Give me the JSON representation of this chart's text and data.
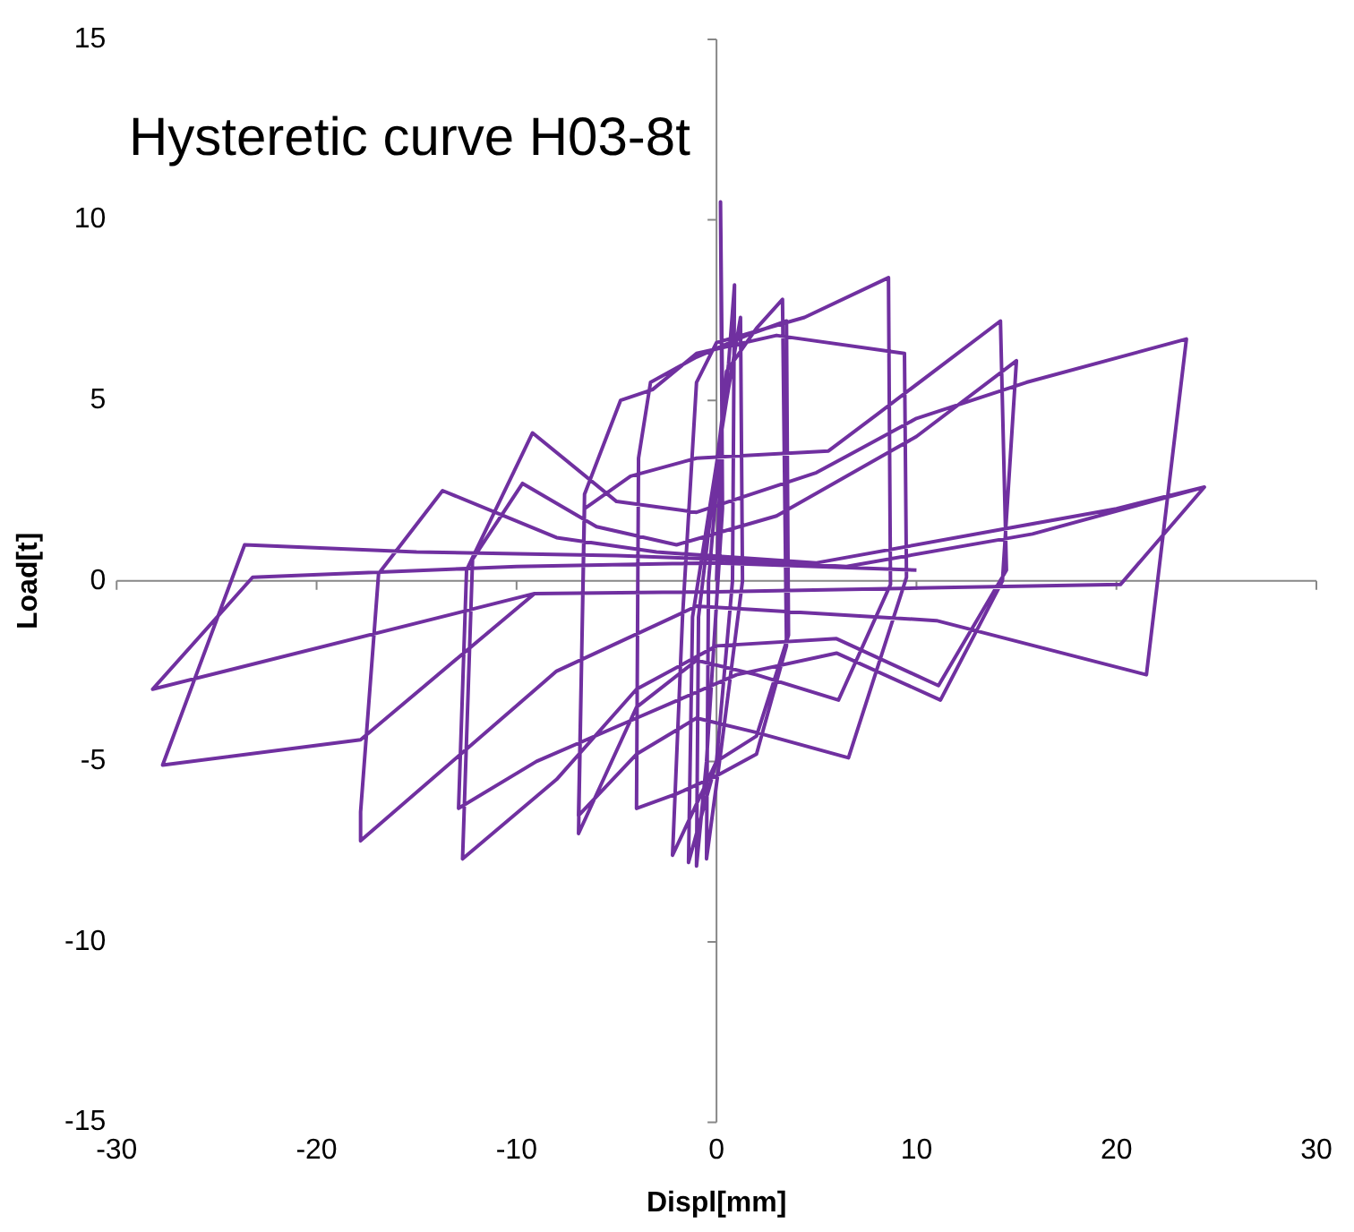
{
  "chart_data": {
    "type": "line",
    "title": "Hysteretic curve H03-8t",
    "xlabel": "Displ[mm]",
    "ylabel": "Load[t]",
    "xlim": [
      -30,
      30
    ],
    "xticks": [
      -30,
      -20,
      -10,
      0,
      10,
      20,
      30
    ],
    "ylim": [
      -15,
      15
    ],
    "yticks": [
      -15,
      -10,
      -5,
      0,
      5,
      10,
      15
    ],
    "legend": false,
    "series": [
      {
        "color": "#7030a0",
        "x": [
          0,
          0.3,
          0.2,
          0.3,
          -0.5,
          -1,
          -0.9,
          0.6,
          0.9,
          0.8,
          0,
          -1.4,
          -1.2,
          0.5,
          1.2,
          1.3,
          0.2,
          -0.5,
          -0.4,
          0.5,
          2,
          3.3,
          3.5,
          2,
          0,
          -2,
          -4,
          -3.9,
          -3.3,
          -1,
          1.5,
          3.5,
          3.6,
          2,
          0,
          -2.2,
          -1.7,
          -1,
          0,
          4.4,
          8.6,
          8.7,
          6.1,
          2,
          -1,
          -4,
          -6.9,
          -6.6,
          -4.8,
          -3.2,
          -1,
          3,
          9.4,
          9.5,
          6.6,
          2,
          -1,
          -4,
          -6.9,
          -6.6,
          -4.3,
          -1,
          5.6,
          8,
          14.2,
          14.5,
          11.1,
          6,
          0,
          -4,
          -8,
          -12.7,
          -12.2,
          -9.7,
          -6,
          -2,
          3,
          10,
          15,
          14.3,
          11.2,
          6,
          1,
          -4,
          -9,
          -12.9,
          -12.5,
          -9.2,
          -5,
          -1,
          5,
          10,
          15.5,
          23.5,
          21.5,
          11,
          -1,
          -8,
          -17.8,
          -17.8,
          -16.9,
          -13.7,
          -8,
          -3,
          5,
          15,
          20,
          24.4,
          20.2,
          10,
          0,
          -9.1,
          -17.8,
          -27.7,
          -23.6,
          -15,
          -5,
          0,
          6.5,
          15.8,
          24.4,
          20.2,
          10,
          0,
          -9.1,
          -28.2,
          -23.2,
          -10,
          0,
          5,
          10
        ],
        "values": [
          0,
          5,
          10.5,
          2,
          -5,
          -7.9,
          -1,
          6,
          8.2,
          0,
          -5,
          -7.8,
          -1,
          5,
          7.3,
          0,
          -4.8,
          -7.7,
          0,
          5.8,
          7,
          7.8,
          -1.8,
          -4.8,
          -5.4,
          -5.9,
          -6.3,
          3.4,
          5.5,
          6.2,
          6.8,
          7.2,
          -1.5,
          -4.3,
          -5,
          -7.6,
          -1,
          5.5,
          6.6,
          7.3,
          8.4,
          -0.1,
          -3.3,
          -2.6,
          -2.2,
          -3.5,
          -7,
          2.4,
          5,
          5.3,
          6.3,
          6.8,
          6.3,
          0.1,
          -4.9,
          -4.2,
          -3.8,
          -4.8,
          -6.5,
          2,
          2.9,
          3.4,
          3.6,
          4.6,
          7.2,
          0.3,
          -2.9,
          -1.6,
          -1.8,
          -3,
          -5.5,
          -7.7,
          0.6,
          2.7,
          1.5,
          1,
          1.8,
          4,
          6.1,
          0,
          -3.3,
          -2,
          -2.6,
          -3.8,
          -5,
          -6.3,
          0.3,
          4.1,
          2.2,
          1.9,
          3,
          4.5,
          5.5,
          6.7,
          -2.6,
          -1.1,
          -0.7,
          -2.5,
          -7.2,
          -6.4,
          0.2,
          2.5,
          1.2,
          0.8,
          0.5,
          1.5,
          2,
          2.6,
          -0.1,
          -0.2,
          -0.3,
          -0.35,
          -4.4,
          -5.1,
          1,
          0.8,
          0.7,
          0.6,
          0.4,
          1.3,
          2.6,
          -0.1,
          -0.2,
          -0.3,
          -0.35,
          -3,
          0.1,
          0.4,
          0.5,
          0.4,
          0.3
        ]
      }
    ]
  }
}
